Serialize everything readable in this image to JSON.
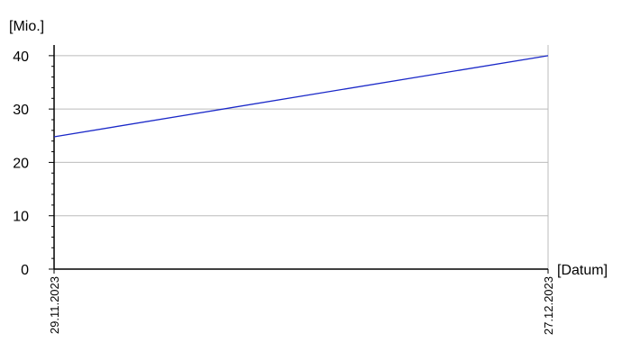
{
  "chart_data": {
    "type": "line",
    "x_label": "[Datum]",
    "y_label": "[Mio.]",
    "categories": [
      "29.11.2023",
      "27.12.2023"
    ],
    "series": [
      {
        "name": null,
        "color": "#1a28c8",
        "values": [
          24.8,
          40
        ]
      }
    ],
    "ylim": [
      0,
      42
    ],
    "yticks": [
      0,
      10,
      20,
      30,
      40
    ],
    "grid": true
  }
}
